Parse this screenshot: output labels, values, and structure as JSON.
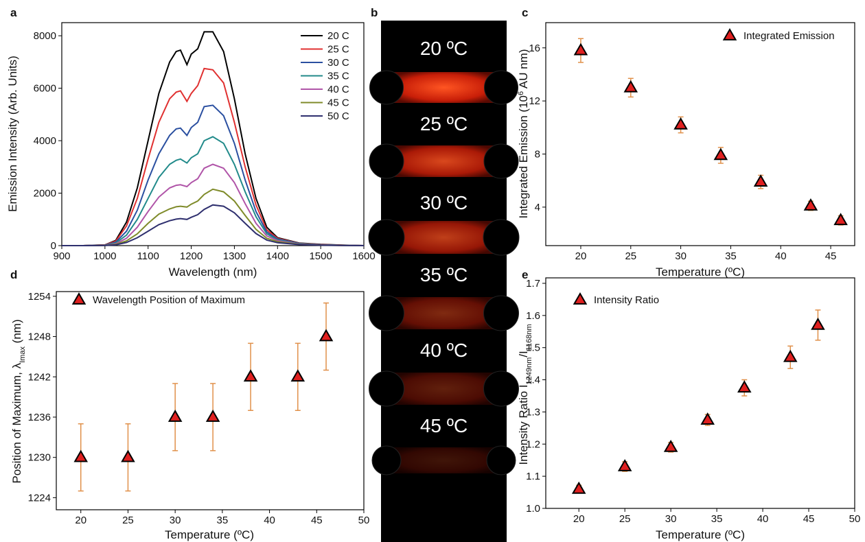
{
  "chart_data": [
    {
      "type": "line",
      "panel_label": "a",
      "xlabel": "Wavelength (nm)",
      "ylabel": "Emission Intensity (Arb. Units)",
      "x": [
        900,
        950,
        1000,
        1025,
        1050,
        1075,
        1100,
        1125,
        1150,
        1165,
        1175,
        1190,
        1200,
        1215,
        1230,
        1250,
        1275,
        1300,
        1325,
        1350,
        1375,
        1400,
        1450,
        1500,
        1550,
        1600
      ],
      "series": [
        {
          "name": "20 C",
          "color": "#000000",
          "values": [
            0,
            0,
            30,
            200,
            900,
            2200,
            4000,
            5800,
            7000,
            7400,
            7450,
            6900,
            7300,
            7500,
            8150,
            8150,
            7400,
            5600,
            3500,
            1800,
            700,
            300,
            100,
            50,
            20,
            0
          ]
        },
        {
          "name": "25 C",
          "color": "#e03030",
          "values": [
            0,
            0,
            25,
            170,
            750,
            1800,
            3300,
            4700,
            5600,
            5850,
            5900,
            5500,
            5800,
            6100,
            6750,
            6700,
            6200,
            4700,
            3000,
            1550,
            600,
            280,
            90,
            40,
            15,
            0
          ]
        },
        {
          "name": "30 C",
          "color": "#2a4fa0",
          "values": [
            0,
            0,
            20,
            130,
            550,
            1350,
            2500,
            3500,
            4200,
            4450,
            4480,
            4200,
            4500,
            4700,
            5300,
            5350,
            4950,
            3900,
            2500,
            1300,
            520,
            250,
            80,
            35,
            12,
            0
          ]
        },
        {
          "name": "35 C",
          "color": "#218a8a",
          "values": [
            0,
            0,
            15,
            100,
            400,
            1000,
            1800,
            2600,
            3100,
            3250,
            3300,
            3150,
            3350,
            3500,
            4000,
            4150,
            3900,
            3100,
            2050,
            1100,
            450,
            220,
            70,
            30,
            10,
            0
          ]
        },
        {
          "name": "40 C",
          "color": "#b054a8",
          "values": [
            0,
            0,
            10,
            70,
            280,
            700,
            1300,
            1850,
            2200,
            2300,
            2320,
            2250,
            2400,
            2550,
            2950,
            3100,
            2950,
            2400,
            1600,
            850,
            370,
            190,
            60,
            25,
            8,
            0
          ]
        },
        {
          "name": "45 C",
          "color": "#7f8b2a",
          "values": [
            0,
            0,
            8,
            50,
            180,
            450,
            850,
            1200,
            1400,
            1480,
            1500,
            1470,
            1580,
            1700,
            1950,
            2150,
            2050,
            1700,
            1150,
            620,
            280,
            150,
            50,
            20,
            6,
            0
          ]
        },
        {
          "name": "50 C",
          "color": "#2e2f6e",
          "values": [
            0,
            0,
            5,
            30,
            120,
            300,
            550,
            800,
            950,
            1010,
            1030,
            1000,
            1080,
            1180,
            1380,
            1550,
            1500,
            1250,
            850,
            460,
            210,
            110,
            40,
            15,
            5,
            0
          ]
        }
      ],
      "xlim": [
        900,
        1600
      ],
      "xticks": [
        900,
        1000,
        1100,
        1200,
        1300,
        1400,
        1500,
        1600
      ],
      "ylim": [
        0,
        8500
      ],
      "yticks": [
        0,
        2000,
        4000,
        6000,
        8000
      ]
    },
    {
      "type": "image",
      "panel_label": "b",
      "labels": [
        "20 ºC",
        "25 ºC",
        "30 ºC",
        "35 ºC",
        "40 ºC",
        "45 ºC"
      ]
    },
    {
      "type": "scatter",
      "panel_label": "c",
      "xlabel": "Temperature (ºC)",
      "ylabel": [
        "Integrated Emission (10",
        "6",
        " AU nm)"
      ],
      "series": [
        {
          "name": "Integrated Emission",
          "color": "#e02020",
          "edgecolor": "#000000",
          "errcolor": "#e0904a",
          "x": [
            20,
            25,
            30,
            34,
            38,
            43,
            46
          ],
          "values": [
            15.8,
            13.0,
            10.2,
            7.9,
            5.9,
            4.1,
            3.0
          ],
          "errors": [
            0.9,
            0.7,
            0.6,
            0.6,
            0.5,
            0.35,
            0.35
          ]
        }
      ],
      "xlim": [
        16.5,
        47.4
      ],
      "xticks": [
        20,
        25,
        30,
        35,
        40,
        45
      ],
      "ylim": [
        1.1,
        17.9
      ],
      "yticks": [
        4,
        8,
        12,
        16
      ]
    },
    {
      "type": "scatter",
      "panel_label": "d",
      "xlabel": "Temperature (ºC)",
      "ylabel": [
        "Position of Maximum, λ",
        "Imax",
        " (nm)"
      ],
      "series": [
        {
          "name": "Wavelength Position of Maximum",
          "color": "#e02020",
          "edgecolor": "#000000",
          "errcolor": "#e0904a",
          "x": [
            20,
            25,
            30,
            34,
            38,
            43,
            46
          ],
          "values": [
            1230,
            1230,
            1236,
            1236,
            1242,
            1242,
            1248
          ],
          "errors": [
            5,
            5,
            5,
            5,
            5,
            5,
            5
          ]
        }
      ],
      "xlim": [
        17.4,
        50
      ],
      "xticks": [
        20,
        25,
        30,
        35,
        40,
        45,
        50
      ],
      "ylim": [
        1222.2,
        1254.7
      ],
      "yticks": [
        1224,
        1230,
        1236,
        1242,
        1248,
        1254
      ]
    },
    {
      "type": "scatter",
      "panel_label": "e",
      "xlabel": "Temperature (ºC)",
      "ylabel": [
        "Intensity Ratio I",
        "1249nm",
        "/I",
        "1168nm"
      ],
      "series": [
        {
          "name": "Intensity Ratio",
          "color": "#e02020",
          "edgecolor": "#000000",
          "errcolor": "#e0904a",
          "x": [
            20,
            25,
            30,
            34,
            38,
            43,
            46
          ],
          "values": [
            1.06,
            1.13,
            1.19,
            1.275,
            1.375,
            1.47,
            1.57
          ],
          "errors": [
            0.012,
            0.015,
            0.015,
            0.017,
            0.025,
            0.035,
            0.047
          ]
        }
      ],
      "xlim": [
        16.4,
        50
      ],
      "xticks": [
        20,
        25,
        30,
        35,
        40,
        45,
        50
      ],
      "ylim": [
        1.0,
        1.717
      ],
      "yticks": [
        {
          "value": 1.0,
          "label": "1.0"
        },
        1.1,
        1.2,
        1.3,
        1.4,
        1.5,
        1.6,
        1.7
      ]
    }
  ]
}
